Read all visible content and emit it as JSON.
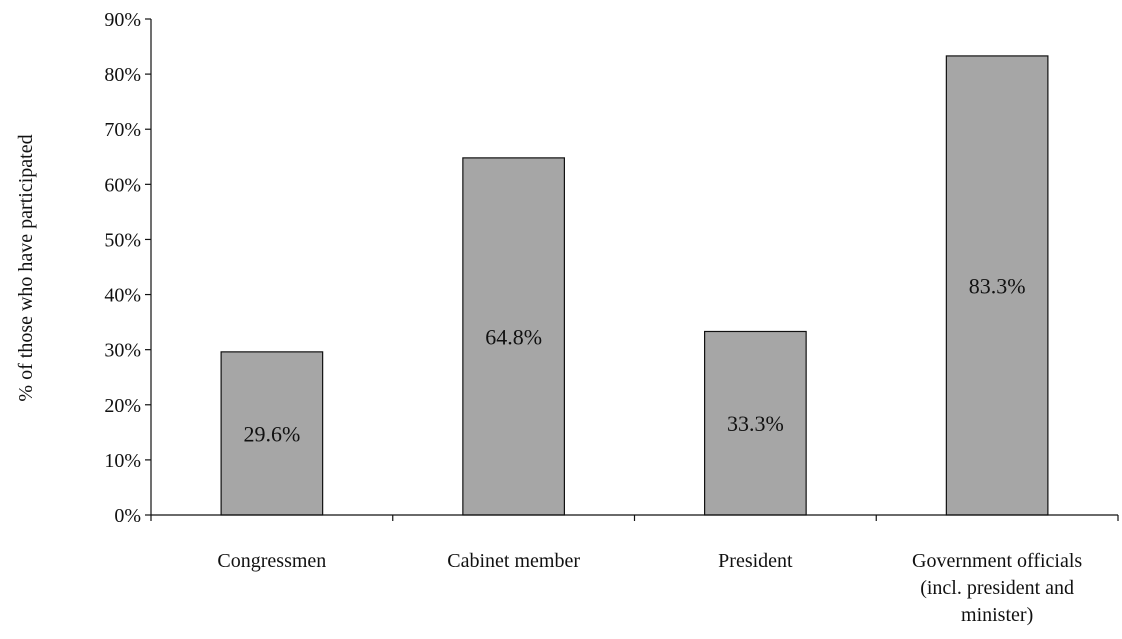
{
  "chart_data": {
    "type": "bar",
    "title": "",
    "xlabel": "",
    "ylabel": "% of those who have participated",
    "ylim": [
      0,
      90
    ],
    "y_tick_step": 10,
    "y_tick_format": "percent",
    "grid": false,
    "bar_color": "#a6a6a6",
    "bar_edge_color": "#111111",
    "categories": [
      [
        "Congressmen"
      ],
      [
        "Cabinet member"
      ],
      [
        "President"
      ],
      [
        "Government officials",
        "(incl. president and",
        "minister)"
      ]
    ],
    "values": [
      29.6,
      64.8,
      33.3,
      83.3
    ],
    "data_labels": [
      "29.6%",
      "64.8%",
      "33.3%",
      "83.3%"
    ]
  }
}
